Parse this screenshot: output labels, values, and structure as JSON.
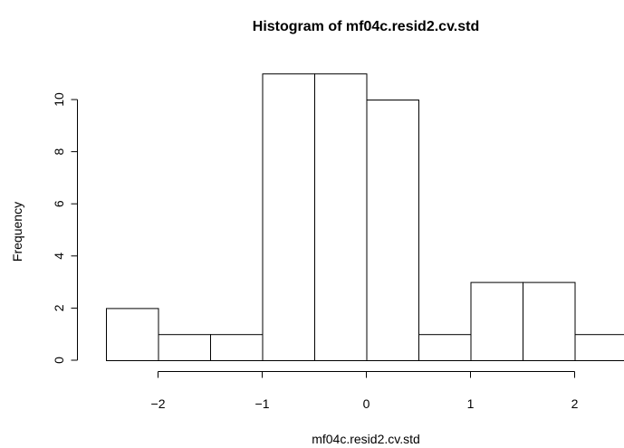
{
  "chart_data": {
    "type": "bar",
    "title": "Histogram of mf04c.resid2.cv.std",
    "xlabel": "mf04c.resid2.cv.std",
    "ylabel": "Frequency",
    "bins": [
      {
        "x0": -2.5,
        "x1": -2.0,
        "count": 2
      },
      {
        "x0": -2.0,
        "x1": -1.5,
        "count": 1
      },
      {
        "x0": -1.5,
        "x1": -1.0,
        "count": 1
      },
      {
        "x0": -1.0,
        "x1": -0.5,
        "count": 11
      },
      {
        "x0": -0.5,
        "x1": 0.0,
        "count": 11
      },
      {
        "x0": 0.0,
        "x1": 0.5,
        "count": 10
      },
      {
        "x0": 0.5,
        "x1": 1.0,
        "count": 1
      },
      {
        "x0": 1.0,
        "x1": 1.5,
        "count": 3
      },
      {
        "x0": 1.5,
        "x1": 2.0,
        "count": 3
      },
      {
        "x0": 2.0,
        "x1": 2.5,
        "count": 1
      }
    ],
    "x_ticks": [
      {
        "value": -2,
        "label": "−2"
      },
      {
        "value": -1,
        "label": "−1"
      },
      {
        "value": 0,
        "label": "0"
      },
      {
        "value": 1,
        "label": "1"
      },
      {
        "value": 2,
        "label": "2"
      }
    ],
    "y_ticks": [
      {
        "value": 0,
        "label": "0"
      },
      {
        "value": 2,
        "label": "2"
      },
      {
        "value": 4,
        "label": "4"
      },
      {
        "value": 6,
        "label": "6"
      },
      {
        "value": 8,
        "label": "8"
      },
      {
        "value": 10,
        "label": "10"
      }
    ],
    "xlim": [
      -2.5,
      2.5
    ],
    "ylim": [
      0,
      11
    ],
    "grid": false
  }
}
